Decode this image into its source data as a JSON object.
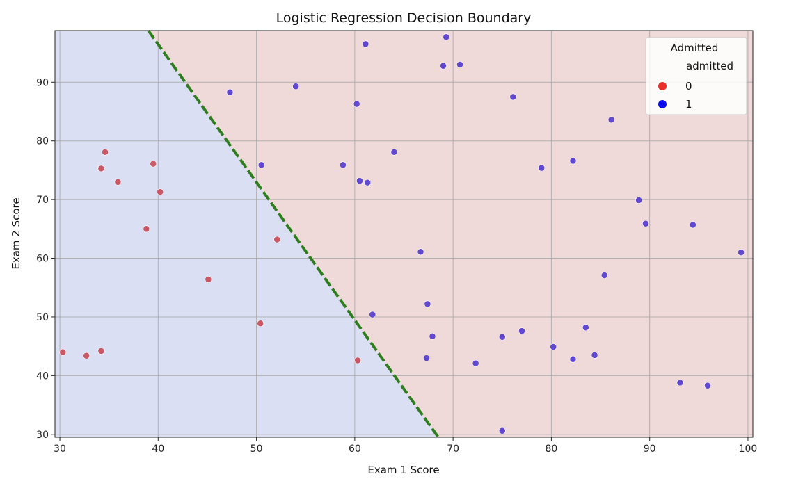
{
  "chart_data": {
    "type": "scatter",
    "title": "Logistic Regression Decision Boundary",
    "xlabel": "Exam 1 Score",
    "ylabel": "Exam 2 Score",
    "xlim": [
      29.5,
      100.5
    ],
    "ylim": [
      29.5,
      98.8
    ],
    "xticks": [
      30,
      40,
      50,
      60,
      70,
      80,
      90,
      100
    ],
    "yticks": [
      30,
      40,
      50,
      60,
      70,
      80,
      90
    ],
    "grid": true,
    "legend": {
      "placement": "top-right",
      "title": "Admitted",
      "subtitle": "admitted",
      "entries": [
        {
          "label": "0",
          "color": "#e8302a"
        },
        {
          "label": "1",
          "color": "#0a0af0"
        }
      ]
    },
    "colors": {
      "region_0": "#dbdff3",
      "region_1": "#efd9d9",
      "point_0": "#c8505e",
      "point_1": "#5a3fd0",
      "boundary": "#2e7d1e"
    },
    "boundary": {
      "x": [
        39.0,
        68.5
      ],
      "y": [
        98.8,
        29.5
      ]
    },
    "series": [
      {
        "name": "0",
        "points": [
          [
            30.3,
            44.0
          ],
          [
            32.7,
            43.4
          ],
          [
            34.2,
            44.2
          ],
          [
            34.2,
            75.3
          ],
          [
            34.6,
            78.1
          ],
          [
            35.9,
            73.0
          ],
          [
            38.8,
            65.0
          ],
          [
            39.5,
            76.1
          ],
          [
            40.2,
            71.3
          ],
          [
            45.1,
            56.4
          ],
          [
            50.4,
            48.9
          ],
          [
            52.1,
            63.2
          ],
          [
            60.3,
            42.6
          ]
        ]
      },
      {
        "name": "1",
        "points": [
          [
            47.3,
            88.3
          ],
          [
            50.5,
            75.9
          ],
          [
            54.0,
            89.3
          ],
          [
            58.8,
            75.9
          ],
          [
            60.2,
            86.3
          ],
          [
            60.5,
            73.2
          ],
          [
            61.1,
            96.5
          ],
          [
            61.3,
            72.9
          ],
          [
            61.8,
            50.4
          ],
          [
            64.0,
            78.1
          ],
          [
            66.7,
            61.1
          ],
          [
            67.3,
            43.0
          ],
          [
            67.4,
            52.2
          ],
          [
            67.9,
            46.7
          ],
          [
            69.0,
            92.8
          ],
          [
            69.3,
            97.7
          ],
          [
            70.7,
            93.0
          ],
          [
            72.3,
            42.1
          ],
          [
            75.0,
            46.6
          ],
          [
            75.0,
            30.6
          ],
          [
            76.1,
            87.5
          ],
          [
            77.0,
            47.6
          ],
          [
            79.0,
            75.4
          ],
          [
            80.2,
            44.9
          ],
          [
            82.2,
            76.6
          ],
          [
            82.2,
            42.8
          ],
          [
            83.5,
            48.2
          ],
          [
            84.4,
            43.5
          ],
          [
            85.4,
            57.1
          ],
          [
            86.1,
            83.6
          ],
          [
            88.9,
            69.9
          ],
          [
            89.6,
            65.9
          ],
          [
            93.1,
            38.8
          ],
          [
            94.4,
            65.7
          ],
          [
            95.9,
            38.3
          ],
          [
            99.3,
            61.0
          ]
        ]
      }
    ]
  }
}
